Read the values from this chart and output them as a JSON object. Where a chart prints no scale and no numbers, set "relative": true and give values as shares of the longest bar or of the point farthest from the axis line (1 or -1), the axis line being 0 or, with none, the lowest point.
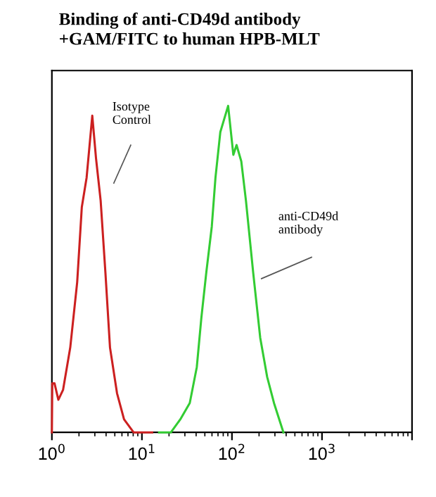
{
  "chart_data": {
    "type": "line",
    "title": "Binding of anti-CD49d antibody\n+GAM/FITC to human HPB-MLT",
    "relative": true,
    "log": "x",
    "xlim": [
      1,
      10000
    ],
    "xticks": [
      {
        "value": 1,
        "label": "10$^{0}$"
      },
      {
        "value": 10,
        "label": "10$^{1}$"
      },
      {
        "value": 100,
        "label": "10$^{2}$"
      },
      {
        "value": 1000,
        "label": "10$^{3}$"
      },
      {
        "value": 10000,
        "label": null
      }
    ],
    "grid": false,
    "legend": false,
    "marker": "none",
    "line_style": "solid",
    "tick_labels": "x",
    "series": [
      {
        "color": "#cc2020",
        "x": [
          1,
          1.01,
          1.07,
          1.18,
          1.33,
          1.6,
          1.91,
          2.15,
          2.43,
          2.81,
          3.09,
          3.48,
          3.93,
          4.42,
          5.29,
          6.33,
          8.08,
          13.0
        ],
        "values": [
          0,
          0.15,
          0.15,
          0.1,
          0.13,
          0.26,
          0.46,
          0.69,
          0.78,
          0.97,
          0.84,
          0.71,
          0.49,
          0.26,
          0.12,
          0.04,
          0.0,
          0
        ]
      },
      {
        "color": "#33cc33",
        "x": [
          15.5,
          21,
          26.7,
          34,
          40.7,
          45.7,
          51.9,
          59.7,
          65.6,
          74.3,
          90.7,
          103.6,
          112.5,
          127,
          143,
          172,
          206,
          246,
          293,
          373
        ],
        "values": [
          0,
          0.0,
          0.04,
          0.09,
          0.2,
          0.35,
          0.49,
          0.63,
          0.78,
          0.92,
          1,
          0.85,
          0.88,
          0.83,
          0.71,
          0.49,
          0.29,
          0.17,
          0.09,
          0
        ]
      }
    ],
    "annotations": [
      "Isotype\nControl",
      "anti-CD49d\nantibody"
    ]
  }
}
